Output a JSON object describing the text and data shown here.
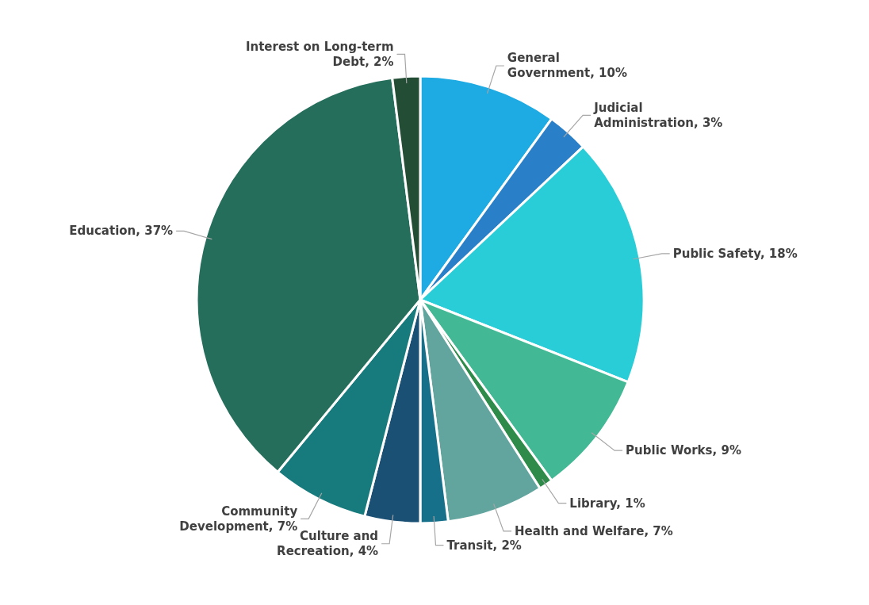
{
  "chart_data": {
    "type": "pie",
    "categories": [
      "General Government",
      "Judicial Administration",
      "Public Safety",
      "Public Works",
      "Library",
      "Health and Welfare",
      "Transit",
      "Culture and Recreation",
      "Community Development",
      "Education",
      "Interest on Long-term Debt"
    ],
    "values": [
      10,
      3,
      18,
      9,
      1,
      7,
      2,
      4,
      7,
      37,
      2
    ],
    "value_labels": [
      "10%",
      "3%",
      "18%",
      "9%",
      "1%",
      "7%",
      "2%",
      "4%",
      "7%",
      "37%",
      "2%"
    ],
    "colors": [
      "#1eaae2",
      "#2a80c8",
      "#28cdd8",
      "#42b994",
      "#2e8b4a",
      "#62a49e",
      "#17708a",
      "#1b5075",
      "#177a7c",
      "#266e5c",
      "#234d35"
    ]
  }
}
